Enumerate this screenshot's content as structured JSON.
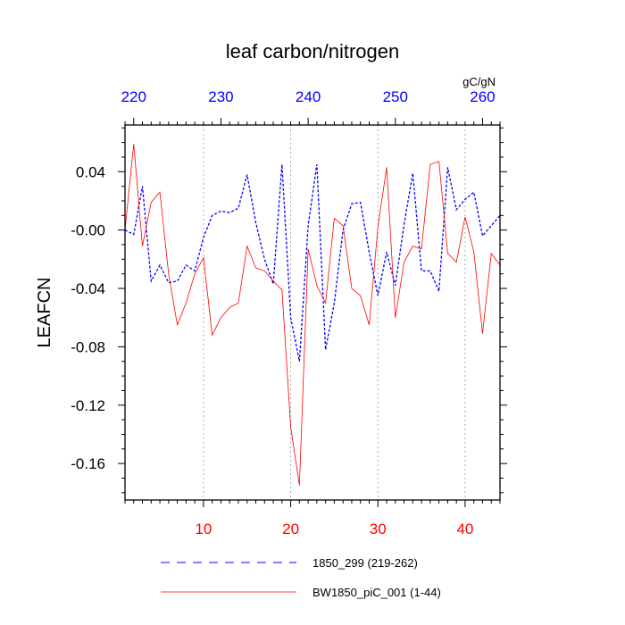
{
  "chart_data": {
    "type": "line",
    "title": "leaf carbon/nitrogen",
    "ylabel": "LEAFCN",
    "top_axis_units": "gC/gN",
    "xlim_bottom": [
      1,
      44
    ],
    "xlim_top": [
      219,
      262
    ],
    "ylim": [
      -0.185,
      0.072
    ],
    "bottom_ticks": [
      10,
      20,
      30,
      40
    ],
    "bottom_tick_labels": [
      "10",
      "20",
      "30",
      "40"
    ],
    "top_ticks": [
      220,
      230,
      240,
      250,
      260
    ],
    "top_tick_labels": [
      "220",
      "230",
      "240",
      "250",
      "260"
    ],
    "y_ticks": [
      0.04,
      0.0,
      -0.04,
      -0.08,
      -0.12,
      -0.16
    ],
    "y_tick_labels": [
      "0.04",
      "-0.00",
      "-0.04",
      "-0.08",
      "-0.12",
      "-0.16"
    ],
    "gridlines_x": [
      10,
      20,
      30,
      40
    ],
    "colors": {
      "series1": "#0000ff",
      "series2": "#ff0000",
      "axis_bottom": "#ff0000",
      "axis_top": "#0000ff"
    },
    "series": [
      {
        "name": "1850_299 (219-262)",
        "style": "dashed",
        "color": "#0000ff",
        "values": [
          0.0,
          -0.003,
          0.03,
          -0.035,
          -0.024,
          -0.036,
          -0.035,
          -0.024,
          -0.028,
          -0.005,
          0.01,
          0.013,
          0.012,
          0.015,
          0.038,
          0.005,
          -0.02,
          -0.037,
          0.045,
          -0.06,
          -0.09,
          0.003,
          0.045,
          -0.082,
          -0.05,
          0.0,
          0.018,
          0.019,
          -0.015,
          -0.045,
          -0.015,
          -0.038,
          0.004,
          0.039,
          -0.028,
          -0.028,
          -0.042,
          0.043,
          0.014,
          0.021,
          0.026,
          -0.004,
          0.003,
          0.01
        ]
      },
      {
        "name": "BW1850_piC_001 (1-44)",
        "style": "solid",
        "color": "#ff0000",
        "values": [
          0.0,
          0.059,
          -0.011,
          0.019,
          0.026,
          -0.03,
          -0.065,
          -0.05,
          -0.03,
          -0.019,
          -0.072,
          -0.06,
          -0.053,
          -0.05,
          -0.011,
          -0.026,
          -0.028,
          -0.035,
          -0.041,
          -0.135,
          -0.175,
          -0.013,
          -0.038,
          -0.05,
          0.008,
          0.003,
          -0.04,
          -0.045,
          -0.065,
          0.002,
          0.043,
          -0.06,
          -0.022,
          -0.011,
          -0.013,
          0.045,
          0.047,
          -0.016,
          -0.022,
          0.009,
          -0.015,
          -0.071,
          -0.016,
          -0.024
        ]
      }
    ],
    "legend": [
      {
        "label": "1850_299 (219-262)",
        "style": "dashed",
        "color": "#0000ff"
      },
      {
        "label": "BW1850_piC_001 (1-44)",
        "style": "solid",
        "color": "#ff0000"
      }
    ]
  }
}
